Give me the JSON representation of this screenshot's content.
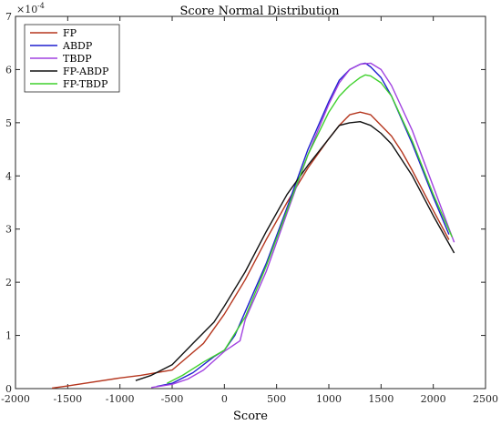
{
  "chart_data": {
    "type": "line",
    "title": "Score Normal Distribution",
    "xlabel": "Score",
    "ylabel": "",
    "y_exponent_label": "×10",
    "y_exponent_power": "-4",
    "xlim": [
      -2000,
      2500
    ],
    "ylim": [
      0,
      7
    ],
    "xticks": [
      -2000,
      -1500,
      -1000,
      -500,
      0,
      500,
      1000,
      1500,
      2000,
      2500
    ],
    "yticks": [
      0,
      1,
      2,
      3,
      4,
      5,
      6,
      7
    ],
    "legend_position": "top-left",
    "grid": false,
    "series": [
      {
        "name": "FP",
        "color": "#b5361e",
        "x": [
          -1650,
          -1500,
          -1000,
          -800,
          -500,
          -200,
          0,
          200,
          400,
          600,
          800,
          1000,
          1100,
          1200,
          1300,
          1400,
          1500,
          1600,
          1700,
          1800,
          2000,
          2150
        ],
        "y": [
          0.01,
          0.05,
          0.2,
          0.25,
          0.35,
          0.85,
          1.4,
          2.05,
          2.8,
          3.5,
          4.15,
          4.7,
          4.95,
          5.15,
          5.2,
          5.15,
          4.95,
          4.75,
          4.45,
          4.1,
          3.35,
          2.8
        ]
      },
      {
        "name": "ABDP",
        "color": "#1f1fcf",
        "x": [
          -650,
          -500,
          -300,
          -100,
          0,
          100,
          200,
          400,
          600,
          800,
          1000,
          1100,
          1200,
          1300,
          1350,
          1400,
          1500,
          1600,
          1800,
          2000,
          2150
        ],
        "y": [
          0.04,
          0.1,
          0.3,
          0.6,
          0.72,
          1.0,
          1.45,
          2.35,
          3.4,
          4.5,
          5.4,
          5.8,
          6.0,
          6.1,
          6.12,
          6.05,
          5.85,
          5.5,
          4.6,
          3.6,
          2.9
        ]
      },
      {
        "name": "TBDP",
        "color": "#a142e0",
        "x": [
          -700,
          -500,
          -350,
          -200,
          0,
          150,
          200,
          400,
          600,
          800,
          1000,
          1100,
          1200,
          1300,
          1400,
          1500,
          1600,
          1800,
          2000,
          2200
        ],
        "y": [
          0.02,
          0.08,
          0.18,
          0.35,
          0.7,
          0.9,
          1.3,
          2.2,
          3.3,
          4.4,
          5.35,
          5.75,
          6.0,
          6.1,
          6.12,
          6.0,
          5.7,
          4.85,
          3.8,
          2.75
        ]
      },
      {
        "name": "FP-ABDP",
        "color": "#111111",
        "x": [
          -850,
          -700,
          -500,
          -300,
          -100,
          0,
          200,
          400,
          600,
          800,
          1000,
          1100,
          1200,
          1300,
          1400,
          1500,
          1600,
          1800,
          2000,
          2200
        ],
        "y": [
          0.15,
          0.25,
          0.45,
          0.85,
          1.25,
          1.55,
          2.2,
          2.95,
          3.65,
          4.2,
          4.7,
          4.95,
          5.0,
          5.02,
          4.95,
          4.8,
          4.6,
          4.0,
          3.25,
          2.55
        ]
      },
      {
        "name": "FP-TBDP",
        "color": "#3fd12c",
        "x": [
          -550,
          -400,
          -200,
          0,
          200,
          400,
          600,
          800,
          1000,
          1100,
          1200,
          1300,
          1350,
          1400,
          1500,
          1600,
          1800,
          2000,
          2180
        ],
        "y": [
          0.1,
          0.25,
          0.5,
          0.72,
          1.35,
          2.3,
          3.35,
          4.4,
          5.2,
          5.5,
          5.7,
          5.85,
          5.9,
          5.88,
          5.75,
          5.5,
          4.65,
          3.65,
          2.85
        ]
      }
    ]
  }
}
